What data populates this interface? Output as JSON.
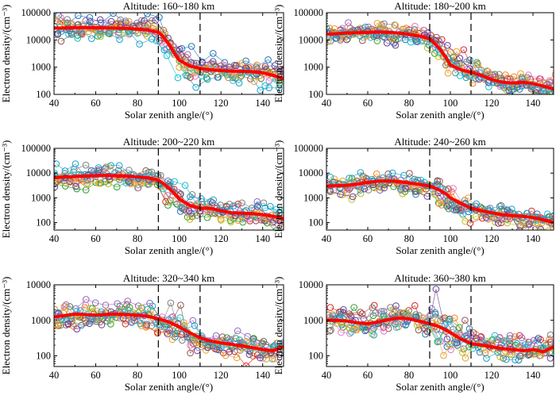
{
  "chart_data": [
    {
      "type": "line",
      "title": "Altitude: 160~180 km",
      "xlabel": "Solar zenith angle/(°)",
      "ylabel": "Electron density/(cm⁻³)",
      "xlim": [
        40,
        150
      ],
      "ylim": [
        100,
        100000
      ],
      "xticks": [
        "40",
        "60",
        "80",
        "100",
        "120",
        "140"
      ],
      "yticks": [
        "100",
        "1000",
        "10000",
        "100000"
      ],
      "vlines": [
        90,
        110
      ],
      "mean_series": {
        "name": "mean",
        "color": "#ff0000",
        "x": [
          40,
          45,
          50,
          55,
          60,
          65,
          70,
          75,
          80,
          85,
          90,
          92,
          95,
          98,
          100,
          105,
          110,
          115,
          120,
          125,
          130,
          135,
          140,
          145,
          150
        ],
        "values": [
          27000,
          27500,
          28000,
          28500,
          28000,
          27500,
          27000,
          26500,
          25000,
          23000,
          19000,
          14000,
          7000,
          3000,
          1800,
          1100,
          900,
          800,
          750,
          720,
          700,
          680,
          620,
          500,
          380
        ]
      }
    },
    {
      "type": "line",
      "title": "Altitude: 180~200 km",
      "xlabel": "Solar zenith angle/(°)",
      "ylabel": "Electron density/(cm⁻³)",
      "xlim": [
        40,
        150
      ],
      "ylim": [
        100,
        100000
      ],
      "xticks": [
        "40",
        "60",
        "80",
        "100",
        "120",
        "140"
      ],
      "yticks": [
        "100",
        "1000",
        "10000",
        "100000"
      ],
      "vlines": [
        90,
        110
      ],
      "mean_series": {
        "name": "mean",
        "color": "#ff0000",
        "x": [
          40,
          45,
          50,
          55,
          60,
          65,
          70,
          75,
          80,
          85,
          90,
          92,
          95,
          98,
          100,
          105,
          110,
          115,
          120,
          125,
          130,
          135,
          140,
          145,
          150
        ],
        "values": [
          16000,
          17000,
          18000,
          18500,
          19000,
          19500,
          19000,
          18000,
          16000,
          14000,
          11000,
          8000,
          4500,
          2200,
          1200,
          800,
          650,
          500,
          350,
          280,
          260,
          280,
          250,
          200,
          160
        ]
      }
    },
    {
      "type": "line",
      "title": "Altitude: 200~220 km",
      "xlabel": "Solar zenith angle/(°)",
      "ylabel": "Electron density/(cm⁻³)",
      "xlim": [
        40,
        150
      ],
      "ylim": [
        50,
        100000
      ],
      "xticks": [
        "40",
        "60",
        "80",
        "100",
        "120",
        "140"
      ],
      "yticks": [
        "100",
        "1000",
        "10000",
        "100000"
      ],
      "vlines": [
        90,
        110
      ],
      "mean_series": {
        "name": "mean",
        "color": "#ff0000",
        "x": [
          40,
          45,
          50,
          55,
          60,
          65,
          70,
          75,
          80,
          85,
          90,
          92,
          95,
          98,
          100,
          105,
          110,
          115,
          120,
          125,
          130,
          135,
          140,
          145,
          150
        ],
        "values": [
          6500,
          7000,
          7300,
          7600,
          7800,
          8000,
          7800,
          7500,
          7000,
          6500,
          5200,
          4000,
          2500,
          1400,
          900,
          500,
          380,
          380,
          300,
          250,
          240,
          230,
          210,
          180,
          140
        ]
      }
    },
    {
      "type": "line",
      "title": "Altitude: 240~260 km",
      "xlabel": "Solar zenith angle/(°)",
      "ylabel": "Electron density/(cm⁻³)",
      "xlim": [
        40,
        150
      ],
      "ylim": [
        50,
        100000
      ],
      "xticks": [
        "40",
        "60",
        "80",
        "100",
        "120",
        "140"
      ],
      "yticks": [
        "100",
        "1000",
        "10000",
        "100000"
      ],
      "vlines": [
        90,
        110
      ],
      "mean_series": {
        "name": "mean",
        "color": "#ff0000",
        "x": [
          40,
          45,
          50,
          55,
          60,
          65,
          70,
          75,
          80,
          85,
          90,
          92,
          95,
          98,
          100,
          105,
          110,
          115,
          120,
          125,
          130,
          135,
          140,
          145,
          150
        ],
        "values": [
          3000,
          3100,
          3200,
          3600,
          4200,
          4700,
          4800,
          4500,
          4000,
          3500,
          3000,
          2600,
          2000,
          1400,
          1000,
          600,
          380,
          300,
          250,
          210,
          190,
          180,
          160,
          130,
          100
        ]
      }
    },
    {
      "type": "line",
      "title": "Altitude: 320~340 km",
      "xlabel": "Solar zenith angle/(°)",
      "ylabel": "Electron density/(cm⁻³)",
      "xlim": [
        40,
        150
      ],
      "ylim": [
        50,
        10000
      ],
      "xticks": [
        "40",
        "60",
        "80",
        "100",
        "120",
        "140"
      ],
      "yticks": [
        "100",
        "1000",
        "10000"
      ],
      "vlines": [
        90,
        110
      ],
      "mean_series": {
        "name": "mean",
        "color": "#ff0000",
        "x": [
          40,
          45,
          50,
          55,
          60,
          65,
          70,
          75,
          80,
          85,
          90,
          95,
          100,
          105,
          110,
          115,
          120,
          125,
          130,
          135,
          140,
          145,
          150
        ],
        "values": [
          1250,
          1350,
          1500,
          1450,
          1400,
          1450,
          1500,
          1450,
          1400,
          1300,
          1100,
          900,
          650,
          450,
          320,
          260,
          230,
          210,
          190,
          170,
          150,
          140,
          180
        ]
      }
    },
    {
      "type": "line",
      "title": "Altitude: 360~380 km",
      "xlabel": "Solar zenith angle/(°)",
      "ylabel": "Electron density/(cm⁻³)",
      "xlim": [
        40,
        150
      ],
      "ylim": [
        50,
        10000
      ],
      "xticks": [
        "40",
        "60",
        "80",
        "100",
        "120",
        "140"
      ],
      "yticks": [
        "100",
        "1000",
        "10000"
      ],
      "vlines": [
        90,
        110
      ],
      "mean_series": {
        "name": "mean",
        "color": "#ff0000",
        "x": [
          40,
          45,
          50,
          55,
          60,
          65,
          70,
          75,
          80,
          85,
          90,
          95,
          100,
          105,
          110,
          115,
          120,
          125,
          130,
          135,
          140,
          145,
          150
        ],
        "values": [
          1000,
          1000,
          950,
          850,
          800,
          900,
          1050,
          1150,
          1100,
          950,
          800,
          650,
          450,
          300,
          220,
          200,
          180,
          160,
          150,
          140,
          150,
          130,
          180
        ]
      }
    }
  ]
}
